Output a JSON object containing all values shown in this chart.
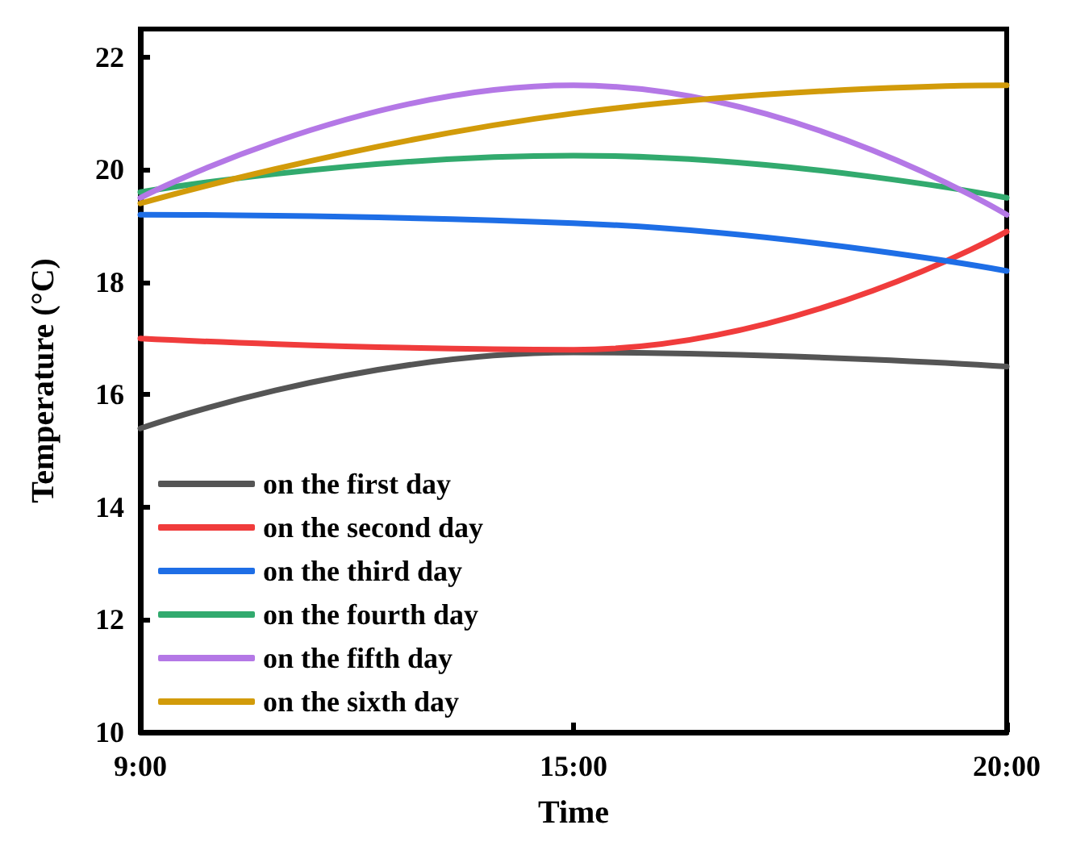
{
  "chart_data": {
    "type": "line",
    "xlabel": "Time",
    "ylabel": "Temperature (°C)",
    "categories": [
      "9:00",
      "15:00",
      "20:00"
    ],
    "ylim": [
      10,
      22.5
    ],
    "yticks": [
      10,
      12,
      14,
      16,
      18,
      20,
      22
    ],
    "grid": false,
    "legend": "bottom left",
    "marker": "none",
    "line_style": "solid",
    "series": [
      {
        "name": "on the first day",
        "color": "#555555",
        "values": [
          15.4,
          16.75,
          16.5
        ]
      },
      {
        "name": "on the second day",
        "color": "#f03c3c",
        "values": [
          17.0,
          16.8,
          18.9
        ]
      },
      {
        "name": "on the third day",
        "color": "#1e6ee6",
        "values": [
          19.2,
          19.05,
          18.2
        ]
      },
      {
        "name": "on the fourth day",
        "color": "#32aa6e",
        "values": [
          19.6,
          20.25,
          19.5
        ]
      },
      {
        "name": "on the fifth day",
        "color": "#b478e6",
        "values": [
          19.5,
          21.5,
          19.2
        ]
      },
      {
        "name": "on the sixth day",
        "color": "#d29b0a",
        "values": [
          19.4,
          21.0,
          21.5
        ]
      }
    ]
  }
}
